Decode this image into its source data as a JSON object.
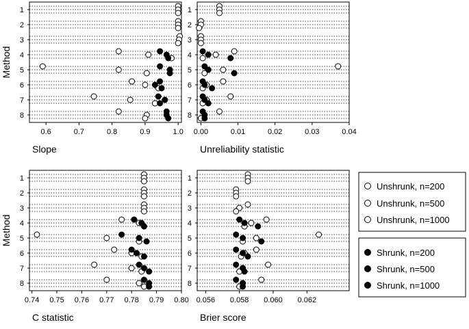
{
  "figure": {
    "y_label": "Method",
    "methods": [
      "1",
      "2",
      "3",
      "4",
      "5",
      "6",
      "7",
      "8"
    ],
    "series_legend": [
      {
        "name": "Unshrunk, n=200",
        "fill": "open"
      },
      {
        "name": "Unshrunk, n=500",
        "fill": "open"
      },
      {
        "name": "Unshrunk, n=1000",
        "fill": "open"
      },
      {
        "name": "Shrunk, n=200",
        "fill": "filled"
      },
      {
        "name": "Shrunk, n=500",
        "fill": "filled"
      },
      {
        "name": "Shrunk, n=1000",
        "fill": "filled"
      }
    ]
  },
  "chart_data": [
    {
      "type": "scatter",
      "title": "",
      "xlabel": "Slope",
      "ylabel": "Method",
      "xlim": [
        0.55,
        1.01
      ],
      "xticks": [
        "0.6",
        "0.7",
        "0.8",
        "0.9",
        "1.0"
      ],
      "xtick_values": [
        0.6,
        0.7,
        0.8,
        0.9,
        1.0
      ],
      "categories": [
        "1",
        "2",
        "3",
        "4",
        "5",
        "6",
        "7",
        "8"
      ],
      "series": [
        {
          "name": "Unshrunk, n=200",
          "values": [
            1.0,
            1.0,
            1.005,
            0.82,
            0.59,
            0.86,
            0.745,
            0.82
          ]
        },
        {
          "name": "Unshrunk, n=500",
          "values": [
            1.0,
            1.0,
            1.003,
            0.91,
            0.82,
            0.9,
            0.855,
            0.905
          ]
        },
        {
          "name": "Unshrunk, n=1000",
          "values": [
            1.0,
            1.0,
            1.0,
            0.98,
            0.905,
            0.94,
            0.93,
            0.9
          ]
        },
        {
          "name": "Shrunk, n=200",
          "values": [
            null,
            null,
            null,
            0.945,
            0.945,
            0.945,
            0.94,
            0.965
          ]
        },
        {
          "name": "Shrunk, n=500",
          "values": [
            null,
            null,
            null,
            0.965,
            0.975,
            0.93,
            0.96,
            0.965
          ]
        },
        {
          "name": "Shrunk, n=1000",
          "values": [
            null,
            null,
            null,
            0.97,
            0.975,
            0.95,
            0.945,
            0.97
          ]
        }
      ]
    },
    {
      "type": "scatter",
      "title": "",
      "xlabel": "Unreliability statistic",
      "ylabel": "",
      "xlim": [
        -0.001,
        0.04
      ],
      "xticks": [
        "0.00",
        "0.01",
        "0.02",
        "0.03",
        "0.04"
      ],
      "xtick_values": [
        0.0,
        0.01,
        0.02,
        0.03,
        0.04
      ],
      "categories": [
        "1",
        "2",
        "3",
        "4",
        "5",
        "6",
        "7",
        "8"
      ],
      "series": [
        {
          "name": "Unshrunk, n=200",
          "values": [
            0.005,
            0.0,
            0.0,
            0.009,
            0.037,
            0.006,
            0.008,
            0.005
          ]
        },
        {
          "name": "Unshrunk, n=500",
          "values": [
            0.005,
            0.0,
            0.0,
            0.004,
            0.006,
            0.0015,
            0.0015,
            0.001
          ]
        },
        {
          "name": "Unshrunk, n=1000",
          "values": [
            0.005,
            -0.0005,
            0.0,
            0.0005,
            0.001,
            0.0005,
            0.0005,
            0.0
          ]
        },
        {
          "name": "Shrunk, n=200",
          "values": [
            null,
            null,
            null,
            0.0005,
            0.001,
            0.0005,
            0.0005,
            0.0005
          ]
        },
        {
          "name": "Shrunk, n=500",
          "values": [
            null,
            null,
            null,
            0.002,
            0.002,
            0.001,
            0.001,
            0.001
          ]
        },
        {
          "name": "Shrunk, n=1000",
          "values": [
            null,
            null,
            null,
            0.008,
            0.009,
            0.003,
            0.002,
            0.001
          ]
        }
      ]
    },
    {
      "type": "scatter",
      "title": "",
      "xlabel": "C statistic",
      "ylabel": "Method",
      "xlim": [
        0.739,
        0.8
      ],
      "xticks": [
        "0.74",
        "0.75",
        "0.76",
        "0.77",
        "0.78",
        "0.79",
        "0.80"
      ],
      "xtick_values": [
        0.74,
        0.75,
        0.76,
        0.77,
        0.78,
        0.79,
        0.8
      ],
      "categories": [
        "1",
        "2",
        "3",
        "4",
        "5",
        "6",
        "7",
        "8"
      ],
      "series": [
        {
          "name": "Unshrunk, n=200",
          "values": [
            0.785,
            0.785,
            0.785,
            0.776,
            0.742,
            0.773,
            0.765,
            0.77
          ]
        },
        {
          "name": "Unshrunk, n=500",
          "values": [
            0.785,
            0.785,
            0.785,
            0.783,
            0.77,
            0.78,
            0.78,
            0.783
          ]
        },
        {
          "name": "Unshrunk, n=1000",
          "values": [
            0.785,
            0.785,
            0.785,
            0.785,
            0.783,
            0.784,
            0.784,
            0.785
          ]
        },
        {
          "name": "Shrunk, n=200",
          "values": [
            null,
            null,
            null,
            0.781,
            0.776,
            0.78,
            0.783,
            0.785
          ]
        },
        {
          "name": "Shrunk, n=500",
          "values": [
            null,
            null,
            null,
            0.784,
            0.783,
            0.782,
            0.785,
            0.787
          ]
        },
        {
          "name": "Shrunk, n=1000",
          "values": [
            null,
            null,
            null,
            0.785,
            0.786,
            0.785,
            0.787,
            0.787
          ]
        }
      ]
    },
    {
      "type": "scatter",
      "title": "",
      "xlabel": "Brier score",
      "ylabel": "",
      "xlim": [
        0.0555,
        0.0645
      ],
      "xticks": [
        "0.056",
        "0.058",
        "0.060",
        "0.062"
      ],
      "xtick_values": [
        0.056,
        0.058,
        0.06,
        0.062
      ],
      "categories": [
        "1",
        "2",
        "3",
        "4",
        "5",
        "6",
        "7",
        "8"
      ],
      "series": [
        {
          "name": "Unshrunk, n=200",
          "values": [
            0.0585,
            0.0578,
            0.0585,
            0.0596,
            0.0627,
            0.059,
            0.0597,
            0.0593
          ]
        },
        {
          "name": "Unshrunk, n=500",
          "values": [
            0.0585,
            0.0578,
            0.058,
            0.0587,
            0.059,
            0.0583,
            0.0582,
            0.0582
          ]
        },
        {
          "name": "Unshrunk, n=1000",
          "values": [
            0.0585,
            0.0578,
            0.0578,
            0.0583,
            0.0582,
            0.0581,
            0.058,
            0.058
          ]
        },
        {
          "name": "Shrunk, n=200",
          "values": [
            null,
            null,
            null,
            0.058,
            0.0578,
            0.0578,
            0.0578,
            0.0578
          ]
        },
        {
          "name": "Shrunk, n=500",
          "values": [
            null,
            null,
            null,
            0.0583,
            0.0582,
            0.0582,
            0.0582,
            0.0582
          ]
        },
        {
          "name": "Shrunk, n=1000",
          "values": [
            null,
            null,
            null,
            0.0591,
            0.0593,
            0.0585,
            0.0583,
            0.0582
          ]
        }
      ]
    }
  ]
}
